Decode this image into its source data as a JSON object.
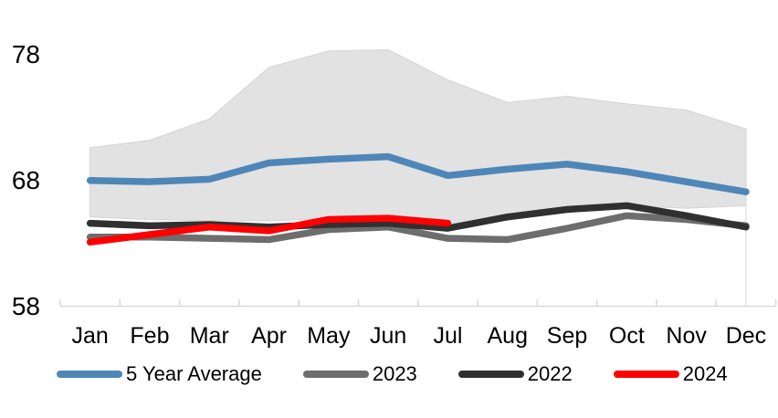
{
  "chart_data": {
    "type": "line",
    "title": "",
    "xlabel": "",
    "ylabel": "",
    "categories": [
      "Jan",
      "Feb",
      "Mar",
      "Apr",
      "May",
      "Jun",
      "Jul",
      "Aug",
      "Sep",
      "Oct",
      "Nov",
      "Dec"
    ],
    "yticks": [
      58,
      68,
      78
    ],
    "ylim": [
      58,
      79.6
    ],
    "grid": false,
    "legend_position": "bottom",
    "axis_color": "#d9d9d9",
    "text_color": "#000000",
    "band": {
      "name": "5-year-range-band",
      "upper": [
        70.6,
        71.2,
        72.9,
        77.0,
        78.3,
        78.4,
        76.0,
        74.2,
        74.7,
        74.1,
        73.6,
        72.1
      ],
      "lower": [
        65.1,
        64.9,
        64.8,
        64.8,
        65.0,
        65.2,
        64.3,
        65.1,
        65.7,
        66.0,
        65.8,
        66.0
      ],
      "fill": "#e2e2e2",
      "stroke": "#d7d7d7"
    },
    "series": [
      {
        "name": "5 Year Average",
        "color": "#4e86b8",
        "values": [
          68.0,
          67.9,
          68.1,
          69.4,
          69.7,
          69.9,
          68.4,
          68.9,
          69.3,
          68.7,
          67.9,
          67.1
        ]
      },
      {
        "name": "2023",
        "color": "#6d6d6d",
        "values": [
          63.5,
          63.5,
          63.4,
          63.3,
          64.1,
          64.3,
          63.4,
          63.3,
          64.2,
          65.2,
          64.9,
          64.4
        ]
      },
      {
        "name": "2022",
        "color": "#303030",
        "values": [
          64.6,
          64.4,
          64.5,
          64.3,
          64.5,
          64.6,
          64.2,
          65.1,
          65.7,
          66.0,
          65.2,
          64.3
        ]
      },
      {
        "name": "2024",
        "color": "#fe0000",
        "values": [
          63.1,
          63.7,
          64.3,
          64.0,
          64.9,
          65.0,
          64.6,
          null,
          null,
          null,
          null,
          null
        ]
      }
    ]
  }
}
